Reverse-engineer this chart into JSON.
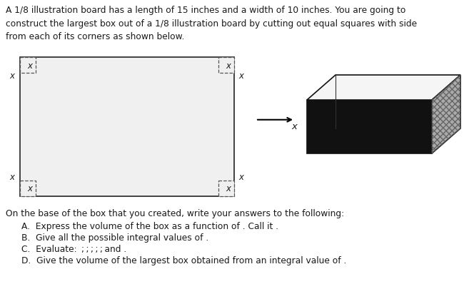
{
  "title_text": "A 1/8 illustration board has a length of 15 inches and a width of 10 inches. You are going to\nconstruct the largest box out of a 1/8 illustration board by cutting out equal squares with side\nfrom each of its corners as shown below.",
  "on_base_text": "On the base of the box that you created, write your answers to the following:",
  "items": [
    "A.  Express the volume of the box as a function of . Call it .",
    "B.  Give all the possible integral values of .",
    "C.  Evaluate:  ; ; ; ; ; and .",
    "D.  Give the volume of the largest box obtained from an integral value of ."
  ],
  "bg_color": "#ffffff",
  "text_color": "#1a1a1a",
  "font_size_title": 8.8,
  "font_size_body": 8.8
}
